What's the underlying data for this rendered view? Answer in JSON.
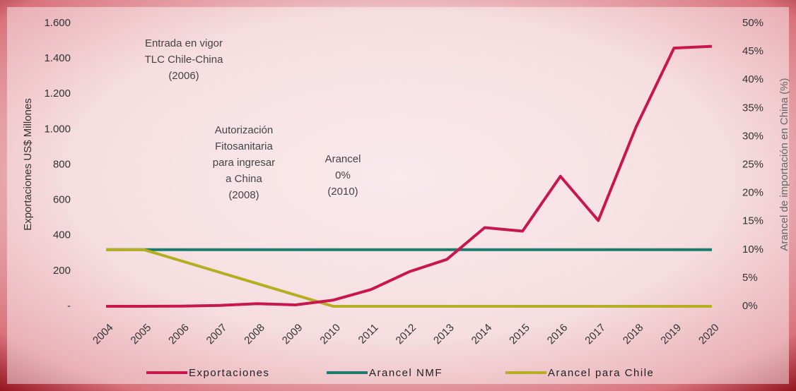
{
  "chart_data": {
    "type": "line",
    "categories": [
      "2004",
      "2005",
      "2006",
      "2007",
      "2008",
      "2009",
      "2010",
      "2011",
      "2012",
      "2013",
      "2014",
      "2015",
      "2016",
      "2017",
      "2018",
      "2019",
      "2020"
    ],
    "series": [
      {
        "name": "Exportaciones",
        "color": "#c8174f",
        "values": [
          0,
          0,
          1,
          5,
          15,
          8,
          35,
          95,
          195,
          265,
          445,
          425,
          735,
          485,
          1015,
          1460,
          1470
        ]
      },
      {
        "name": "Arancel NMF",
        "color": "#1f7a6e",
        "axis": "y2",
        "values": [
          10,
          10,
          10,
          10,
          10,
          10,
          10,
          10,
          10,
          10,
          10,
          10,
          10,
          10,
          10,
          10,
          10
        ]
      },
      {
        "name": "Arancel para Chile",
        "color": "#b5ae22",
        "axis": "y2",
        "values": [
          10,
          10,
          8,
          6,
          4,
          2,
          0,
          0,
          0,
          0,
          0,
          0,
          0,
          0,
          0,
          0,
          0
        ]
      }
    ],
    "ylabel": "Exportaciones US$ Millones",
    "y2label": "Arancel de importación en China (%)",
    "ylim": [
      0,
      1600
    ],
    "yticks": [
      {
        "value": 0,
        "label": "-"
      },
      200,
      400,
      600,
      800,
      {
        "value": 1000,
        "label": "1.000"
      },
      {
        "value": 1200,
        "label": "1.200"
      },
      {
        "value": 1400,
        "label": "1.400"
      },
      {
        "value": 1600,
        "label": "1.600"
      }
    ],
    "y2lim": [
      0,
      50
    ],
    "y2ticks": [
      {
        "value": 0,
        "label": "0%"
      },
      {
        "value": 5,
        "label": "5%"
      },
      {
        "value": 10,
        "label": "10%"
      },
      {
        "value": 15,
        "label": "15%"
      },
      {
        "value": 20,
        "label": "20%"
      },
      {
        "value": 25,
        "label": "25%"
      },
      {
        "value": 30,
        "label": "30%"
      },
      {
        "value": 35,
        "label": "35%"
      },
      {
        "value": 40,
        "label": "40%"
      },
      {
        "value": 45,
        "label": "45%"
      },
      {
        "value": 50,
        "label": "50%"
      }
    ],
    "annotations": [
      {
        "lines": [
          "Entrada en vigor",
          "TLC Chile-China",
          "(2006)"
        ]
      },
      {
        "lines": [
          "Autorización",
          "Fitosanitaria",
          "para ingresar",
          "a China",
          "(2008)"
        ]
      },
      {
        "lines": [
          "Arancel",
          "0%",
          "(2010)"
        ]
      }
    ],
    "legend": "bottom"
  }
}
